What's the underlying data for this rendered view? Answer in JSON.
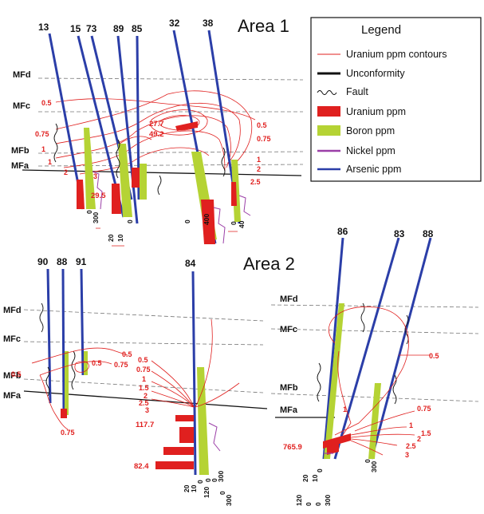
{
  "area1": {
    "title": "Area 1",
    "holes": [
      "13",
      "15",
      "73",
      "89",
      "85",
      "32",
      "38"
    ],
    "units": [
      "MFd",
      "MFc",
      "MFb",
      "MFa"
    ],
    "contours": [
      "0.5",
      "0.75",
      "1",
      "2",
      "3",
      "0.5",
      "0.75",
      "1",
      "2",
      "2.5"
    ],
    "values": [
      "29.5",
      "27.7",
      "49.2"
    ],
    "scale_numbers": [
      "300",
      "0",
      "20",
      "10",
      "0",
      "0",
      "400",
      "0",
      "40"
    ]
  },
  "area2": {
    "title": "Area 2",
    "holes": [
      "90",
      "88",
      "91",
      "84",
      "86",
      "83",
      "88"
    ],
    "units_left": [
      "MFd",
      "MFc",
      "MFb",
      "MFa"
    ],
    "units_right": [
      "MFd",
      "MFc",
      "MFb",
      "MFa"
    ],
    "contours_left": [
      "0.5",
      "0.5",
      "0.75",
      "0.5",
      "0.75"
    ],
    "contours_mid": [
      "0.5",
      "0.75",
      "1",
      "1.5",
      "2",
      "2.5",
      "3"
    ],
    "values_mid": [
      "117.7",
      "82.4"
    ],
    "scale_mid": [
      "20",
      "10",
      "0",
      "120",
      "0",
      "0",
      "300",
      "0",
      "300"
    ],
    "contours_right": [
      "0.5",
      "1",
      "0.75",
      "1",
      "1.5",
      "2",
      "2.5",
      "3"
    ],
    "values_right": [
      "765.9"
    ],
    "scale_right": [
      "20",
      "10",
      "0",
      "120",
      "0",
      "0",
      "300",
      "0",
      "300"
    ]
  },
  "legend": {
    "title": "Legend",
    "items": [
      {
        "label": "Uranium ppm contours",
        "symbol": "thin-red-line",
        "color": "#e0201f"
      },
      {
        "label": "Unconformity",
        "symbol": "thick-black-line",
        "color": "#111111"
      },
      {
        "label": "Fault",
        "symbol": "wavy-line",
        "color": "#111111"
      },
      {
        "label": "Uranium ppm",
        "symbol": "red-box",
        "color": "#e0201f"
      },
      {
        "label": "Boron ppm",
        "symbol": "green-box",
        "color": "#b5d334"
      },
      {
        "label": "Nickel ppm",
        "symbol": "purple-line",
        "color": "#9b3fa7"
      },
      {
        "label": "Arsenic ppm",
        "symbol": "blue-line",
        "color": "#2b3ea8"
      }
    ]
  }
}
